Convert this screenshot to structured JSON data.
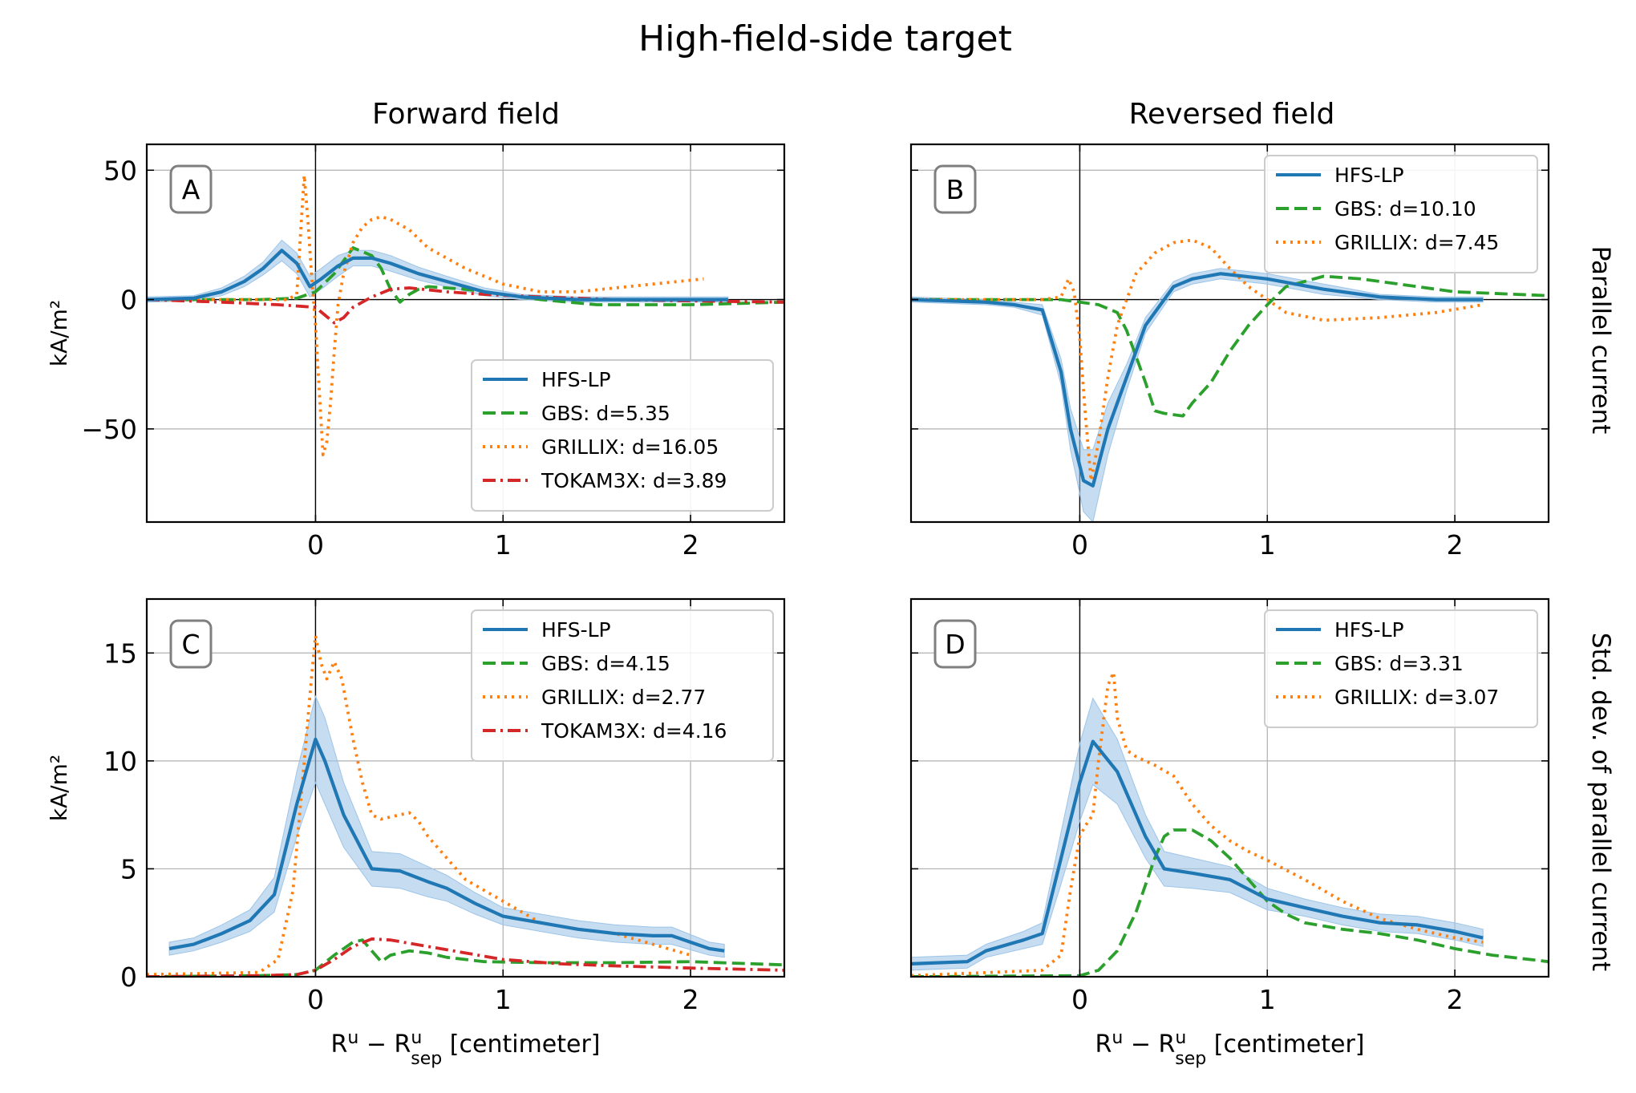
{
  "figure": {
    "title": "High-field-side target",
    "col_titles": [
      "Forward field",
      "Reversed field"
    ],
    "row_labels": [
      "Parallel current",
      "Std. dev. of parallel current"
    ],
    "ylabel": "kA/m²",
    "xlabel": {
      "main": "R",
      "sup1": "u",
      "minus": " − R",
      "sup2": "u",
      "sub2": "sep",
      "rest": " [centimeter]"
    }
  },
  "colors": {
    "HFS-LP": "#1f77b4",
    "GBS": "#2ca02c",
    "GRILLIX": "#ff7f0e",
    "TOKAM3X": "#d62728",
    "band": "#9ec5e8"
  },
  "chart_data": [
    {
      "id": "A",
      "type": "line",
      "xlim": [
        -0.9,
        2.5
      ],
      "ylim": [
        -86,
        60
      ],
      "xticks": [
        0,
        1,
        2
      ],
      "yticks": [
        -50,
        0,
        50
      ],
      "show_yticklabels": true,
      "grid": true,
      "legend_position": "lower-right",
      "series": [
        {
          "name": "HFS-LP",
          "style": "solid",
          "x": [
            -0.9,
            -0.65,
            -0.5,
            -0.38,
            -0.28,
            -0.18,
            -0.1,
            -0.03,
            0.03,
            0.12,
            0.2,
            0.3,
            0.4,
            0.55,
            0.7,
            0.9,
            1.1,
            1.4,
            1.7,
            2.0,
            2.2
          ],
          "y": [
            0,
            0.5,
            3,
            7,
            12,
            19,
            14,
            5,
            8,
            13,
            16,
            16,
            14,
            10,
            7,
            3,
            1,
            0,
            0,
            0,
            0
          ],
          "band": [
            1,
            1,
            1.5,
            2,
            2.5,
            4,
            4,
            4,
            4,
            4,
            3,
            3,
            3,
            2.5,
            2,
            1.5,
            1,
            1,
            1,
            1,
            1
          ]
        },
        {
          "name": "GBS",
          "style": "dashed",
          "x": [
            -0.9,
            -0.6,
            -0.3,
            -0.1,
            0.0,
            0.1,
            0.2,
            0.3,
            0.35,
            0.4,
            0.45,
            0.5,
            0.55,
            0.6,
            0.8,
            1.0,
            1.2,
            1.5,
            2.0,
            2.5
          ],
          "y": [
            0,
            0,
            0,
            0.5,
            3,
            10,
            20,
            17,
            12,
            4,
            -1,
            2,
            4,
            5,
            4,
            2,
            0,
            -2,
            -2,
            -1
          ]
        },
        {
          "name": "GRILLIX",
          "style": "dotted",
          "x": [
            -0.9,
            -0.4,
            -0.15,
            -0.1,
            -0.08,
            -0.06,
            -0.04,
            -0.02,
            0.0,
            0.02,
            0.04,
            0.06,
            0.08,
            0.1,
            0.12,
            0.15,
            0.2,
            0.25,
            0.3,
            0.35,
            0.4,
            0.5,
            0.6,
            0.8,
            1.0,
            1.2,
            1.4,
            1.6,
            1.8,
            2.07
          ],
          "y": [
            0,
            0,
            0,
            2,
            25,
            48,
            30,
            8,
            -10,
            -35,
            -60,
            -55,
            -40,
            -20,
            -2,
            10,
            22,
            28,
            31,
            32,
            31,
            27,
            20,
            12,
            6,
            3,
            3,
            4.5,
            6,
            8
          ]
        },
        {
          "name": "TOKAM3X",
          "style": "dashdot",
          "x": [
            -0.9,
            -0.5,
            -0.2,
            0.0,
            0.05,
            0.1,
            0.15,
            0.2,
            0.3,
            0.4,
            0.5,
            0.7,
            0.9,
            1.2,
            1.6,
            2.0,
            2.5
          ],
          "y": [
            0,
            -1,
            -2,
            -3,
            -6,
            -9,
            -7,
            -3,
            1,
            4,
            4.5,
            3,
            2,
            1,
            0,
            -0.5,
            -1
          ]
        }
      ],
      "legend": [
        "HFS-LP",
        "GBS: d=5.35",
        "GRILLIX: d=16.05",
        "TOKAM3X: d=3.89"
      ]
    },
    {
      "id": "B",
      "type": "line",
      "xlim": [
        -0.9,
        2.5
      ],
      "ylim": [
        -86,
        60
      ],
      "xticks": [
        0,
        1,
        2
      ],
      "yticks": [
        -50,
        0,
        50
      ],
      "show_yticklabels": false,
      "grid": true,
      "legend_position": "upper-right",
      "series": [
        {
          "name": "HFS-LP",
          "style": "solid",
          "x": [
            -0.9,
            -0.5,
            -0.35,
            -0.2,
            -0.1,
            -0.05,
            0.02,
            0.07,
            0.15,
            0.25,
            0.35,
            0.5,
            0.6,
            0.75,
            1.0,
            1.3,
            1.6,
            1.9,
            2.15
          ],
          "y": [
            0,
            -1,
            -2,
            -4,
            -28,
            -50,
            -70,
            -72,
            -50,
            -30,
            -10,
            5,
            8,
            10,
            8,
            4,
            1,
            0,
            0
          ],
          "band": [
            1,
            1,
            1,
            2,
            5,
            8,
            12,
            14,
            10,
            5,
            3,
            2,
            2,
            2,
            2,
            2,
            1,
            1,
            1
          ]
        },
        {
          "name": "GBS",
          "style": "dashed",
          "x": [
            -0.9,
            -0.3,
            -0.1,
            0.1,
            0.2,
            0.25,
            0.3,
            0.35,
            0.4,
            0.45,
            0.55,
            0.6,
            0.7,
            0.8,
            0.9,
            1.0,
            1.1,
            1.3,
            1.5,
            2.0,
            2.5
          ],
          "y": [
            0,
            0,
            0,
            -2,
            -5,
            -12,
            -22,
            -32,
            -43,
            -44,
            -45,
            -40,
            -32,
            -20,
            -10,
            -2,
            5,
            9,
            8,
            3,
            1.5
          ]
        },
        {
          "name": "GRILLIX",
          "style": "dotted",
          "x": [
            -0.9,
            -0.2,
            -0.1,
            -0.06,
            -0.03,
            0.0,
            0.03,
            0.06,
            0.1,
            0.15,
            0.2,
            0.3,
            0.4,
            0.5,
            0.6,
            0.7,
            0.8,
            0.9,
            1.0,
            1.1,
            1.3,
            1.6,
            1.9,
            2.15
          ],
          "y": [
            0,
            0,
            1,
            8,
            3,
            -15,
            -45,
            -70,
            -55,
            -30,
            -10,
            10,
            18,
            22,
            23,
            20,
            12,
            5,
            0,
            -5,
            -8,
            -7,
            -5,
            -2
          ]
        }
      ],
      "legend": [
        "HFS-LP",
        "GBS: d=10.10",
        "GRILLIX: d=7.45"
      ]
    },
    {
      "id": "C",
      "type": "line",
      "xlim": [
        -0.9,
        2.5
      ],
      "ylim": [
        0,
        17.5
      ],
      "xticks": [
        0,
        1,
        2
      ],
      "yticks": [
        0,
        5,
        10,
        15
      ],
      "show_yticklabels": true,
      "grid": true,
      "legend_position": "upper-right",
      "series": [
        {
          "name": "HFS-LP",
          "style": "solid",
          "x": [
            -0.78,
            -0.65,
            -0.5,
            -0.35,
            -0.22,
            -0.1,
            0.0,
            0.05,
            0.15,
            0.3,
            0.45,
            0.6,
            0.7,
            0.85,
            1.0,
            1.2,
            1.4,
            1.6,
            1.8,
            1.9,
            2.1,
            2.18
          ],
          "y": [
            1.3,
            1.5,
            2.0,
            2.6,
            3.8,
            8.0,
            11.0,
            10.0,
            7.5,
            5.0,
            4.9,
            4.4,
            4.1,
            3.4,
            2.8,
            2.5,
            2.2,
            2.0,
            1.9,
            1.9,
            1.3,
            1.2
          ],
          "band": [
            0.3,
            0.3,
            0.4,
            0.5,
            0.8,
            1.5,
            2.0,
            2.0,
            1.5,
            0.8,
            0.8,
            0.7,
            0.6,
            0.5,
            0.4,
            0.4,
            0.4,
            0.4,
            0.4,
            0.4,
            0.3,
            0.3
          ]
        },
        {
          "name": "GBS",
          "style": "dashed",
          "x": [
            -0.9,
            -0.3,
            -0.1,
            0.0,
            0.1,
            0.2,
            0.25,
            0.3,
            0.35,
            0.4,
            0.5,
            0.6,
            0.7,
            0.9,
            1.2,
            1.6,
            2.0,
            2.5
          ],
          "y": [
            0,
            0.05,
            0.1,
            0.3,
            1.0,
            1.6,
            1.7,
            1.2,
            0.7,
            1.0,
            1.2,
            1.1,
            0.9,
            0.7,
            0.65,
            0.65,
            0.7,
            0.55
          ]
        },
        {
          "name": "GRILLIX",
          "style": "dotted",
          "x": [
            -0.9,
            -0.3,
            -0.2,
            -0.12,
            -0.06,
            -0.02,
            0.0,
            0.03,
            0.06,
            0.1,
            0.14,
            0.2,
            0.25,
            0.3,
            0.35,
            0.45,
            0.5,
            0.55,
            0.6,
            0.7,
            0.8,
            1.0,
            1.2,
            1.4,
            1.6,
            1.8,
            2.0
          ],
          "y": [
            0.1,
            0.2,
            0.8,
            4.0,
            10.0,
            14.0,
            15.8,
            14.5,
            13.8,
            14.6,
            13.8,
            11.0,
            9.0,
            7.5,
            7.3,
            7.5,
            7.6,
            7.2,
            6.5,
            5.5,
            4.5,
            3.5,
            2.5,
            2.2,
            2.0,
            1.5,
            1.0
          ]
        },
        {
          "name": "TOKAM3X",
          "style": "dashdot",
          "x": [
            -0.9,
            -0.3,
            -0.1,
            0.0,
            0.1,
            0.2,
            0.3,
            0.4,
            0.6,
            0.8,
            1.0,
            1.3,
            1.6,
            2.0,
            2.5
          ],
          "y": [
            0,
            0.05,
            0.1,
            0.3,
            0.8,
            1.4,
            1.75,
            1.7,
            1.4,
            1.1,
            0.8,
            0.6,
            0.5,
            0.4,
            0.3
          ]
        }
      ],
      "legend": [
        "HFS-LP",
        "GBS: d=4.15",
        "GRILLIX: d=2.77",
        "TOKAM3X: d=4.16"
      ]
    },
    {
      "id": "D",
      "type": "line",
      "xlim": [
        -0.9,
        2.5
      ],
      "ylim": [
        0,
        17.5
      ],
      "xticks": [
        0,
        1,
        2
      ],
      "yticks": [
        0,
        5,
        10,
        15
      ],
      "show_yticklabels": false,
      "grid": true,
      "legend_position": "upper-right",
      "series": [
        {
          "name": "HFS-LP",
          "style": "solid",
          "x": [
            -0.9,
            -0.6,
            -0.5,
            -0.3,
            -0.2,
            -0.1,
            0.0,
            0.07,
            0.2,
            0.35,
            0.45,
            0.6,
            0.8,
            1.0,
            1.2,
            1.4,
            1.6,
            1.8,
            2.0,
            2.15
          ],
          "y": [
            0.6,
            0.7,
            1.2,
            1.7,
            2.0,
            5.5,
            9.0,
            10.9,
            9.5,
            6.5,
            5.0,
            4.8,
            4.5,
            3.6,
            3.2,
            2.8,
            2.5,
            2.4,
            2.1,
            1.8
          ],
          "band": [
            0.3,
            0.3,
            0.3,
            0.4,
            0.5,
            1.2,
            1.8,
            2.0,
            1.5,
            1.0,
            0.8,
            0.7,
            0.6,
            0.5,
            0.4,
            0.4,
            0.4,
            0.4,
            0.4,
            0.4
          ]
        },
        {
          "name": "GBS",
          "style": "dashed",
          "x": [
            -0.9,
            0.0,
            0.1,
            0.2,
            0.3,
            0.4,
            0.45,
            0.5,
            0.6,
            0.7,
            0.8,
            0.9,
            1.0,
            1.1,
            1.2,
            1.4,
            1.6,
            1.8,
            2.0,
            2.2,
            2.5
          ],
          "y": [
            0,
            0.05,
            0.3,
            1.2,
            3.0,
            5.5,
            6.5,
            6.8,
            6.8,
            6.3,
            5.5,
            4.5,
            3.5,
            2.9,
            2.5,
            2.2,
            2.0,
            1.7,
            1.3,
            1.0,
            0.7
          ]
        },
        {
          "name": "GRILLIX",
          "style": "dotted",
          "x": [
            -0.9,
            -0.2,
            -0.1,
            -0.05,
            0.0,
            0.03,
            0.07,
            0.1,
            0.15,
            0.18,
            0.2,
            0.25,
            0.3,
            0.4,
            0.5,
            0.6,
            0.7,
            0.8,
            0.9,
            1.0,
            1.2,
            1.4,
            1.6,
            1.8,
            2.0,
            2.15
          ],
          "y": [
            0.05,
            0.3,
            1.0,
            4.0,
            6.5,
            7.0,
            7.5,
            10.0,
            13.5,
            14.1,
            12.0,
            10.5,
            10.2,
            9.8,
            9.3,
            8.0,
            7.0,
            6.3,
            5.8,
            5.4,
            4.5,
            3.5,
            2.7,
            2.2,
            1.8,
            1.6
          ]
        }
      ],
      "legend": [
        "HFS-LP",
        "GBS: d=3.31",
        "GRILLIX: d=3.07"
      ]
    }
  ]
}
